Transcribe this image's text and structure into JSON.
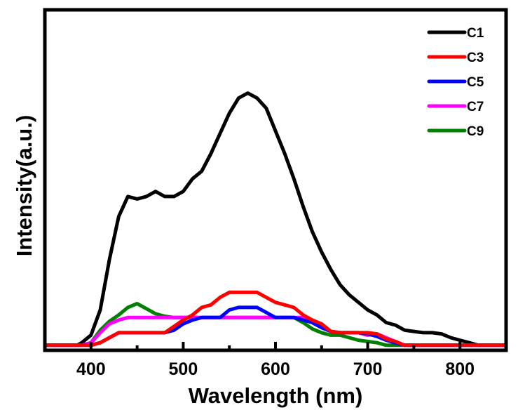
{
  "chart_data": {
    "type": "line",
    "title": "",
    "xlabel": "Wavelength (nm)",
    "ylabel": "Intensity(a.u.)",
    "xlim": [
      350,
      850
    ],
    "ylim": [
      -0.02,
      1.33
    ],
    "xticks": [
      400,
      500,
      600,
      700,
      800
    ],
    "xticks_minor": [
      450,
      550,
      650,
      750
    ],
    "yticks": [],
    "grid": false,
    "legend": "top-right",
    "x": [
      350,
      360,
      370,
      380,
      385,
      390,
      400,
      410,
      420,
      430,
      440,
      450,
      460,
      470,
      480,
      490,
      500,
      510,
      520,
      530,
      540,
      550,
      560,
      570,
      580,
      590,
      600,
      610,
      620,
      630,
      640,
      650,
      660,
      670,
      680,
      690,
      700,
      710,
      720,
      730,
      740,
      750,
      760,
      770,
      780,
      790,
      800,
      810,
      820,
      830,
      840,
      850
    ],
    "series": [
      {
        "name": "C1",
        "color": "#000000",
        "values": [
          0,
          0,
          0,
          0,
          0,
          0.01,
          0.04,
          0.14,
          0.34,
          0.51,
          0.59,
          0.58,
          0.59,
          0.61,
          0.59,
          0.59,
          0.61,
          0.66,
          0.69,
          0.76,
          0.84,
          0.92,
          0.98,
          1.0,
          0.98,
          0.94,
          0.85,
          0.76,
          0.66,
          0.55,
          0.45,
          0.37,
          0.3,
          0.24,
          0.2,
          0.17,
          0.14,
          0.12,
          0.09,
          0.08,
          0.06,
          0.055,
          0.05,
          0.05,
          0.045,
          0.03,
          0.02,
          0.01,
          0,
          0,
          0,
          0
        ]
      },
      {
        "name": "C3",
        "color": "#ff0000",
        "values": [
          0,
          0,
          0,
          0,
          0,
          0,
          0,
          0.01,
          0.03,
          0.05,
          0.05,
          0.05,
          0.05,
          0.05,
          0.05,
          0.075,
          0.1,
          0.12,
          0.15,
          0.16,
          0.19,
          0.21,
          0.21,
          0.21,
          0.21,
          0.19,
          0.17,
          0.16,
          0.15,
          0.12,
          0.1,
          0.085,
          0.055,
          0.05,
          0.05,
          0.05,
          0.05,
          0.045,
          0.025,
          0.015,
          0,
          0,
          0,
          0,
          0,
          0,
          0,
          0,
          0,
          0,
          0,
          0
        ]
      },
      {
        "name": "C5",
        "color": "#0000ff",
        "values": [
          0,
          0,
          0,
          0,
          0,
          0,
          0,
          0.01,
          0.03,
          0.05,
          0.05,
          0.05,
          0.05,
          0.05,
          0.05,
          0.06,
          0.085,
          0.1,
          0.11,
          0.11,
          0.11,
          0.14,
          0.15,
          0.15,
          0.15,
          0.13,
          0.11,
          0.11,
          0.11,
          0.1,
          0.09,
          0.07,
          0.055,
          0.05,
          0.05,
          0.05,
          0.045,
          0.035,
          0.02,
          0.01,
          0,
          0,
          0,
          0,
          0,
          0,
          0,
          0,
          0,
          0,
          0,
          0
        ]
      },
      {
        "name": "C7",
        "color": "#ff00ff",
        "values": [
          0,
          0,
          0,
          0,
          0,
          0,
          0.01,
          0.05,
          0.085,
          0.1,
          0.11,
          0.11,
          0.11,
          0.11,
          0.11,
          0.11,
          0.11,
          0.11,
          0.11,
          0.11,
          0.11,
          0.11,
          0.11,
          0.11,
          0.11,
          0.11,
          0.11,
          0.11,
          0.11,
          0.11,
          0.09,
          0.07,
          0.055,
          0.05,
          0.05,
          0.05,
          0.04,
          0.045,
          0.03,
          0.015,
          0,
          0,
          0,
          0,
          0,
          0,
          0,
          0,
          0,
          0,
          0,
          0
        ]
      },
      {
        "name": "C9",
        "color": "#008000",
        "values": [
          0,
          0,
          0,
          0,
          0,
          0,
          0.01,
          0.06,
          0.095,
          0.12,
          0.15,
          0.165,
          0.145,
          0.125,
          0.115,
          0.11,
          0.11,
          0.11,
          0.11,
          0.11,
          0.11,
          0.11,
          0.11,
          0.11,
          0.11,
          0.11,
          0.11,
          0.11,
          0.11,
          0.09,
          0.065,
          0.05,
          0.04,
          0.04,
          0.03,
          0.02,
          0.015,
          0.01,
          0,
          0,
          0,
          0,
          0,
          0,
          0,
          0,
          0,
          0,
          0,
          0,
          0,
          0
        ]
      }
    ]
  }
}
